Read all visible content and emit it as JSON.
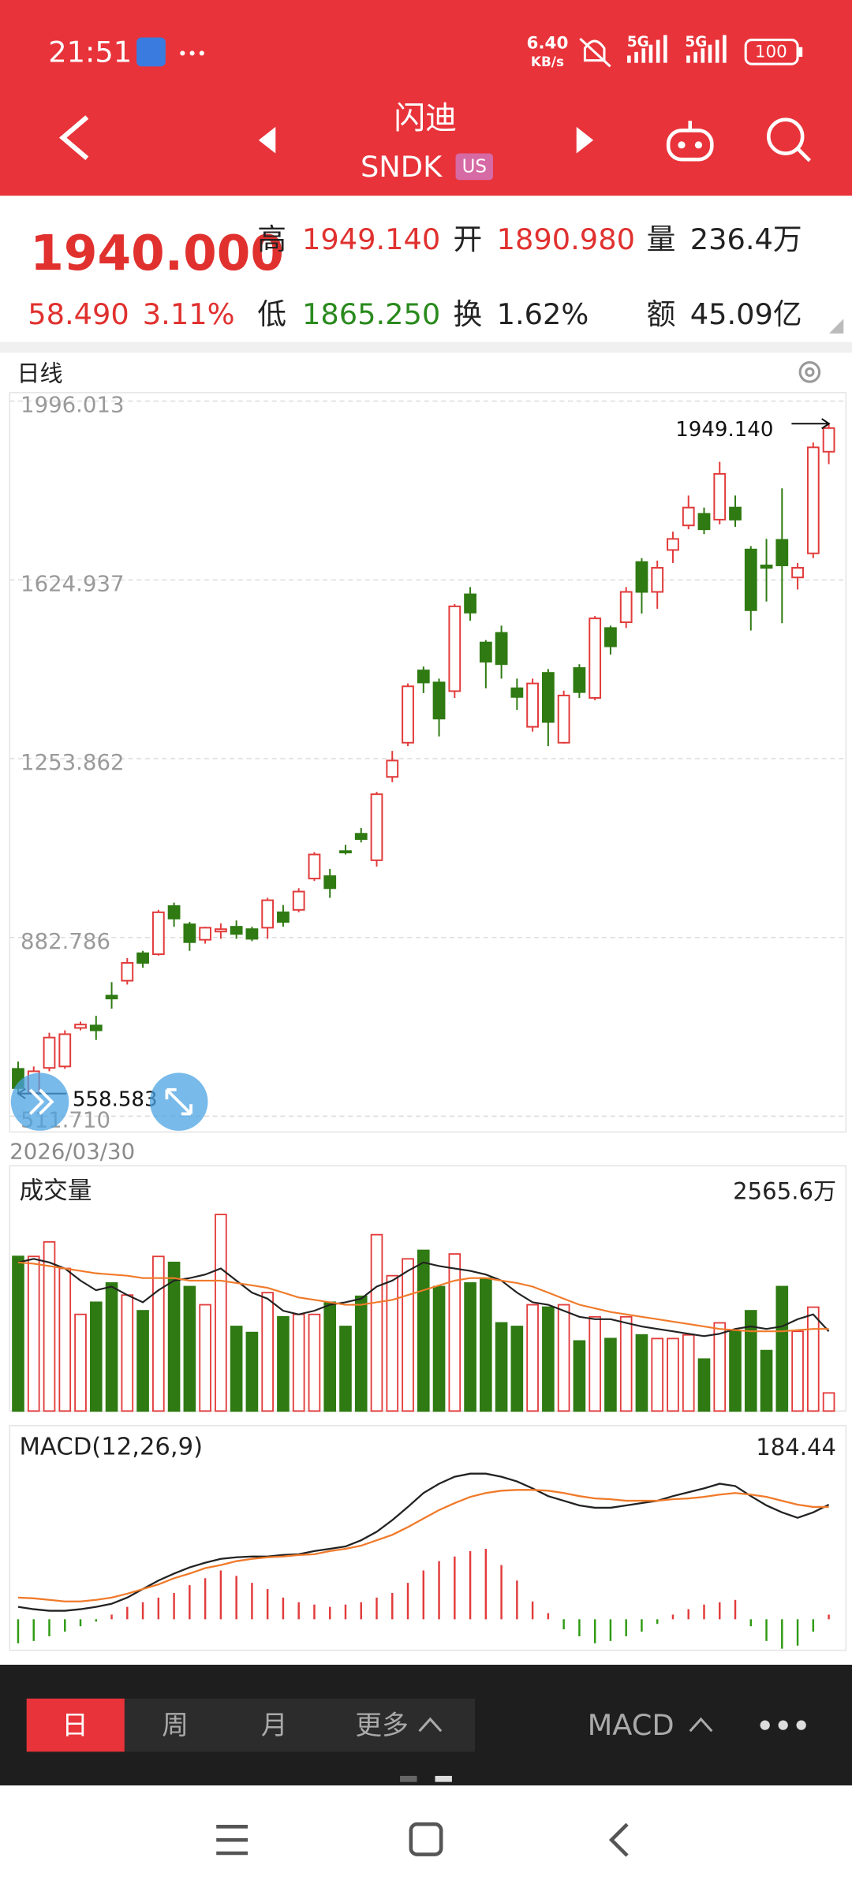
{
  "status_bar": {
    "time": "21:51",
    "speed": "6.40",
    "speed_unit": "KB/s",
    "network_1": "5G",
    "network_2": "5G",
    "battery": "100"
  },
  "header": {
    "name": "闪迪",
    "ticker": "SNDK",
    "market": "US"
  },
  "quote": {
    "price": "1940.000",
    "change": "58.490",
    "change_pct": "3.11%",
    "fields": [
      {
        "label": "高",
        "value": "1949.140"
      },
      {
        "label": "开",
        "value": "1890.980"
      },
      {
        "label": "量",
        "value": "236.4万"
      },
      {
        "label": "低",
        "value": "1865.250"
      },
      {
        "label": "换",
        "value": "1.62%"
      },
      {
        "label": "额",
        "value": "45.09亿"
      }
    ]
  },
  "chart_data": [
    {
      "type": "candlestick",
      "title": "日线",
      "categories": [
        "2026/03/30",
        null,
        null,
        null,
        null,
        null,
        null,
        null,
        null,
        null,
        null,
        null,
        null,
        null,
        null,
        null,
        null,
        null,
        null,
        null,
        null,
        null,
        null,
        null,
        null,
        null,
        null,
        null,
        null,
        null,
        null,
        null,
        null,
        null,
        null,
        null,
        null,
        null,
        null,
        null,
        null,
        null,
        null,
        null,
        null,
        null,
        null,
        null,
        null,
        null,
        null,
        null,
        null
      ],
      "open": [
        610,
        560,
        612,
        615,
        695,
        700,
        762,
        793,
        850,
        848,
        948,
        910,
        878,
        895,
        905,
        900,
        903,
        935,
        940,
        1005,
        1010,
        1062,
        1098,
        1043,
        1216,
        1287,
        1437,
        1412,
        1394,
        1595,
        1495,
        1515,
        1400,
        1320,
        1432,
        1287,
        1442,
        1380,
        1525,
        1537,
        1662,
        1600,
        1687,
        1738,
        1762,
        1750,
        1775,
        1688,
        1655,
        1708,
        1630,
        1680,
        1890.98
      ],
      "high": [
        625,
        615,
        685,
        690,
        708,
        720,
        790,
        840,
        855,
        940,
        955,
        915,
        905,
        912,
        918,
        905,
        965,
        950,
        985,
        1060,
        1025,
        1075,
        1110,
        1185,
        1270,
        1410,
        1445,
        1420,
        1575,
        1610,
        1500,
        1530,
        1420,
        1420,
        1440,
        1395,
        1450,
        1550,
        1530,
        1610,
        1670,
        1665,
        1725,
        1800,
        1775,
        1870,
        1800,
        1695,
        1710,
        1815,
        1660,
        1910,
        1949.14
      ],
      "low": [
        558.583,
        560,
        605,
        610,
        690,
        670,
        735,
        785,
        820,
        845,
        905,
        855,
        870,
        880,
        880,
        875,
        880,
        905,
        935,
        1000,
        965,
        1055,
        1080,
        1030,
        1205,
        1280,
        1390,
        1300,
        1380,
        1540,
        1400,
        1420,
        1355,
        1310,
        1280,
        1285,
        1380,
        1375,
        1470,
        1525,
        1555,
        1565,
        1660,
        1730,
        1720,
        1740,
        1735,
        1520,
        1580,
        1535,
        1605,
        1670,
        1865.25
      ],
      "close": [
        570,
        605,
        675,
        682,
        702,
        690,
        756,
        830,
        830,
        935,
        922,
        873,
        903,
        900,
        890,
        880,
        960,
        915,
        978,
        1055,
        985,
        1060,
        1087,
        1180,
        1250,
        1404,
        1412,
        1337,
        1570,
        1557,
        1455,
        1450,
        1382,
        1410,
        1330,
        1385,
        1392,
        1545,
        1487,
        1600,
        1600,
        1650,
        1710,
        1775,
        1730,
        1845,
        1750,
        1562,
        1650,
        1655,
        1650,
        1900,
        1940
      ],
      "ylim": [
        479,
        2013.6
      ],
      "yticks": [
        {
          "value": 511.71,
          "label": "511.710"
        },
        882.786,
        1253.862,
        1624.937,
        1996.013
      ],
      "grid": true,
      "up_color": "#e23b3b",
      "down_color": "#2f7a12",
      "high_mark": {
        "value": 1949.14,
        "label": "1949.140"
      },
      "low_mark": {
        "value": 558.583,
        "label": "558.583"
      }
    },
    {
      "type": "volume",
      "title": "成交量",
      "values": [
        1990,
        1990,
        2177,
        1835,
        1244,
        1400,
        1648,
        1493,
        1291,
        1990,
        1913,
        1602,
        1368,
        2530,
        1089,
        1011,
        1524,
        1213,
        1244,
        1244,
        1400,
        1089,
        1477,
        2270,
        1742,
        1959,
        2068,
        1602,
        2022,
        1648,
        1710,
        1135,
        1089,
        1368,
        1337,
        1368,
        902,
        1213,
        933,
        1213,
        980,
        933,
        933,
        980,
        669,
        1135,
        1026,
        1291,
        778,
        1602,
        1026,
        1337,
        233
      ],
      "lines": [
        {
          "color": "#222222",
          "values": [
            1913,
            1959,
            1913,
            1835,
            1679,
            1555,
            1602,
            1493,
            1400,
            1555,
            1679,
            1711,
            1757,
            1835,
            1679,
            1524,
            1446,
            1291,
            1244,
            1291,
            1368,
            1400,
            1446,
            1602,
            1679,
            1804,
            1913,
            1866,
            1835,
            1804,
            1757,
            1679,
            1524,
            1400,
            1368,
            1291,
            1213,
            1182,
            1182,
            1135,
            1089,
            1057,
            1026,
            995,
            964,
            995,
            1057,
            1089,
            1057,
            1089,
            1182,
            1244,
            1026
          ]
        },
        {
          "color": "#f07a2a",
          "values": [
            1913,
            1897,
            1866,
            1835,
            1804,
            1773,
            1757,
            1742,
            1711,
            1711,
            1711,
            1679,
            1679,
            1679,
            1648,
            1617,
            1586,
            1524,
            1462,
            1431,
            1400,
            1368,
            1368,
            1400,
            1431,
            1493,
            1555,
            1617,
            1679,
            1711,
            1711,
            1679,
            1648,
            1602,
            1524,
            1446,
            1368,
            1322,
            1275,
            1244,
            1213,
            1182,
            1151,
            1120,
            1089,
            1057,
            1042,
            1026,
            1026,
            1026,
            1042,
            1057,
            1057
          ]
        }
      ],
      "ylim": [
        0,
        2565.6
      ],
      "yticks": [
        {
          "value": 2565.6,
          "label": "2565.6万"
        }
      ]
    },
    {
      "type": "macd",
      "title": "MACD(12,26,9)",
      "value_label": "184.44",
      "histogram": [
        -31,
        -28,
        -22,
        -16,
        -9,
        -3,
        6,
        16,
        22,
        28,
        34,
        44,
        53,
        63,
        56,
        47,
        39,
        28,
        22,
        19,
        16,
        19,
        22,
        28,
        34,
        47,
        63,
        75,
        81,
        88,
        91,
        70,
        50,
        23,
        8,
        -13,
        -22,
        -31,
        -28,
        -22,
        -16,
        -6,
        6,
        13,
        19,
        22,
        25,
        -9,
        -28,
        -38,
        -34,
        -16,
        6
      ],
      "lines": [
        {
          "color": "#222222",
          "values": [
            16,
            13,
            11,
            11,
            13,
            16,
            20,
            28,
            39,
            50,
            59,
            67,
            73,
            78,
            80,
            81,
            81,
            83,
            84,
            88,
            91,
            94,
            102,
            113,
            128,
            145,
            163,
            175,
            184,
            188,
            188,
            184,
            178,
            169,
            159,
            153,
            147,
            144,
            144,
            147,
            150,
            153,
            159,
            164,
            169,
            175,
            172,
            159,
            147,
            138,
            131,
            138,
            148
          ]
        },
        {
          "color": "#f07a2a",
          "values": [
            28,
            27,
            25,
            23,
            23,
            25,
            28,
            33,
            39,
            45,
            53,
            59,
            66,
            70,
            75,
            78,
            80,
            81,
            83,
            84,
            88,
            91,
            95,
            102,
            109,
            119,
            130,
            141,
            150,
            158,
            163,
            166,
            167,
            167,
            166,
            163,
            159,
            156,
            155,
            153,
            153,
            153,
            155,
            156,
            158,
            161,
            163,
            161,
            158,
            153,
            148,
            145,
            145
          ]
        }
      ],
      "ylim": [
        -40,
        247
      ],
      "up_color": "#e23b3b",
      "down_color": "#2f9a12"
    }
  ],
  "toolbar": {
    "tabs": [
      "日",
      "周",
      "月",
      "更多"
    ],
    "indicator": "MACD"
  }
}
